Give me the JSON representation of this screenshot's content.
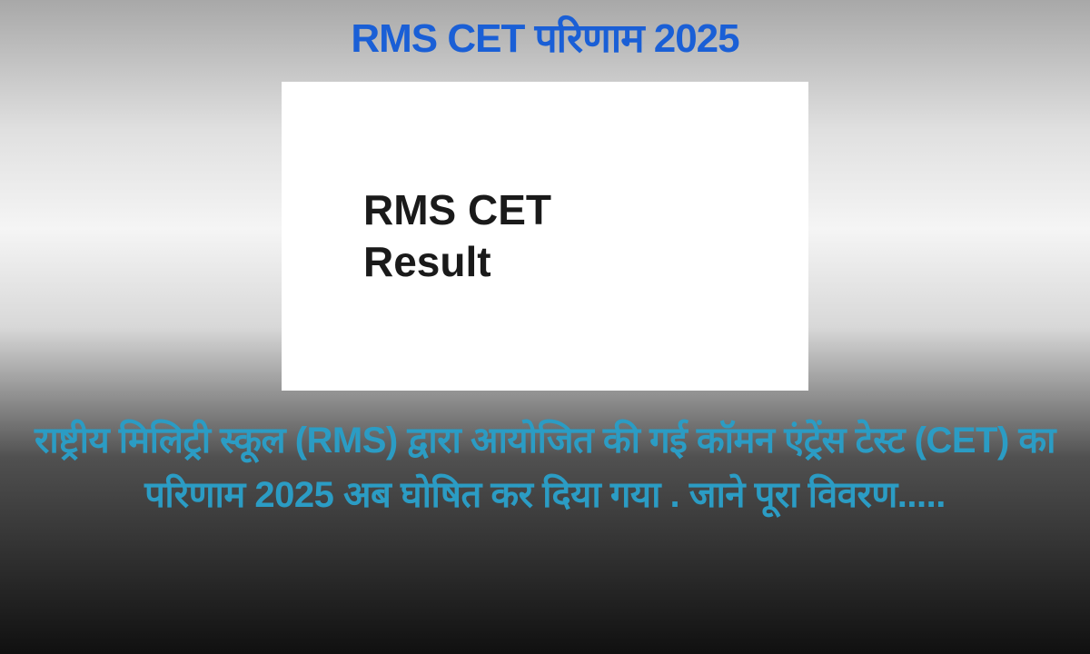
{
  "title": "RMS CET परिणाम 2025",
  "card": {
    "line1": "RMS CET",
    "line2": "Result"
  },
  "description": "राष्ट्रीय मिलिट्री स्कूल (RMS) द्वारा आयोजित की गई कॉमन एंट्रेंस टेस्ट (CET) का परिणाम 2025 अब घोषित कर दिया गया . जाने पूरा विवरण....."
}
